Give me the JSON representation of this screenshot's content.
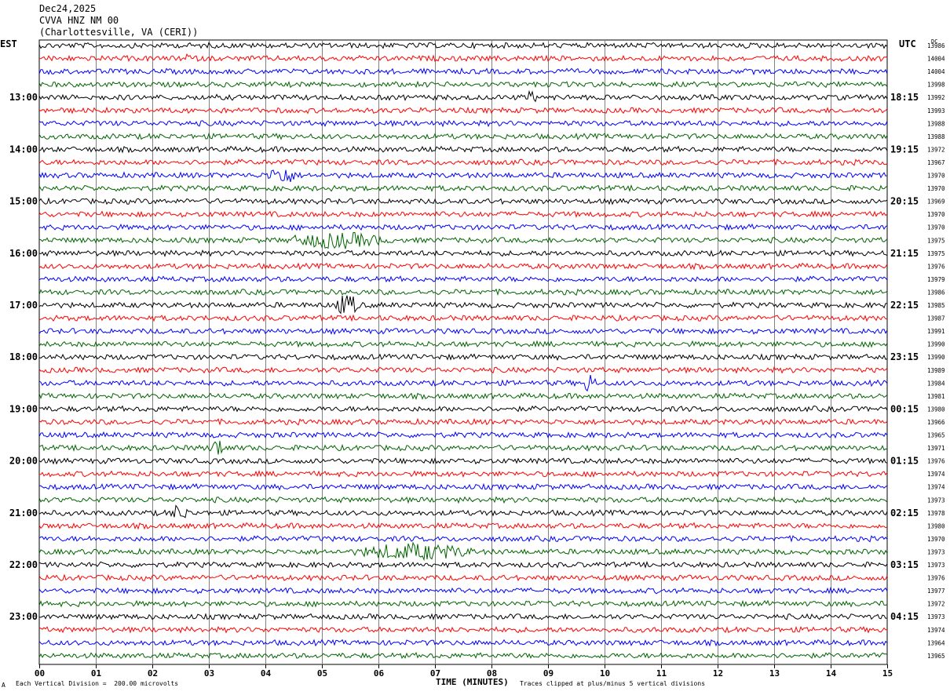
{
  "header": {
    "date": "Dec24,2025",
    "station": "CVVA HNZ NM 00",
    "location": "(Charlottesville, VA (CERI))"
  },
  "left_zone": "EST",
  "right_zone": "UTC",
  "dc_label": "DC",
  "footer": {
    "scale_marker": "A",
    "scale_text": "Each Vertical Division =  200.00 microvolts",
    "xlabel": "TIME (MINUTES)",
    "clip_text": "Traces clipped at plus/minus 5 vertical divisions"
  },
  "colors": {
    "trace_cycle": [
      "#000000",
      "#ff0000",
      "#0000ff",
      "#006400"
    ],
    "grid": "#808080"
  },
  "chart_data": {
    "type": "line",
    "title": "",
    "xlabel": "TIME (MINUTES)",
    "x_ticks": [
      "00",
      "01",
      "02",
      "03",
      "04",
      "05",
      "06",
      "07",
      "08",
      "09",
      "10",
      "11",
      "12",
      "13",
      "14",
      "15"
    ],
    "xlim": [
      0,
      15
    ],
    "row_count": 48,
    "rows_per_hour": 4,
    "left_hour_labels": [
      "13:00",
      "14:00",
      "15:00",
      "16:00",
      "17:00",
      "18:00",
      "19:00",
      "20:00",
      "21:00",
      "22:00",
      "23:00"
    ],
    "right_hour_labels": [
      "18:15",
      "19:15",
      "20:15",
      "21:15",
      "22:15",
      "23:15",
      "00:15",
      "01:15",
      "02:15",
      "03:15",
      "04:15"
    ],
    "dc_offsets": [
      13986,
      14004,
      14004,
      13998,
      13992,
      13993,
      13988,
      13988,
      13972,
      13967,
      13970,
      13970,
      13969,
      13970,
      13970,
      13975,
      13975,
      13976,
      13979,
      13986,
      13985,
      13987,
      13991,
      13990,
      13990,
      13989,
      13984,
      13981,
      13980,
      13966,
      13965,
      13971,
      13976,
      13974,
      13974,
      13973,
      13978,
      13980,
      13970,
      13973,
      13973,
      13976,
      13977,
      13972,
      13973,
      13974,
      13964,
      13965
    ],
    "events": [
      {
        "row": 10,
        "start_min": 4.0,
        "end_min": 4.8,
        "amplitude": 3.0
      },
      {
        "row": 15,
        "start_min": 4.3,
        "end_min": 7.0,
        "amplitude": 2.4
      },
      {
        "row": 20,
        "start_min": 5.2,
        "end_min": 5.9,
        "amplitude": 3.4
      },
      {
        "row": 26,
        "start_min": 9.6,
        "end_min": 10.0,
        "amplitude": 3.2
      },
      {
        "row": 31,
        "start_min": 3.0,
        "end_min": 3.5,
        "amplitude": 3.0
      },
      {
        "row": 36,
        "start_min": 2.3,
        "end_min": 2.8,
        "amplitude": 2.6
      },
      {
        "row": 39,
        "start_min": 5.5,
        "end_min": 8.7,
        "amplitude": 2.6
      },
      {
        "row": 1,
        "start_min": 2.5,
        "end_min": 2.8,
        "amplitude": 1.8
      },
      {
        "row": 4,
        "start_min": 8.6,
        "end_min": 8.9,
        "amplitude": 1.6
      }
    ]
  }
}
